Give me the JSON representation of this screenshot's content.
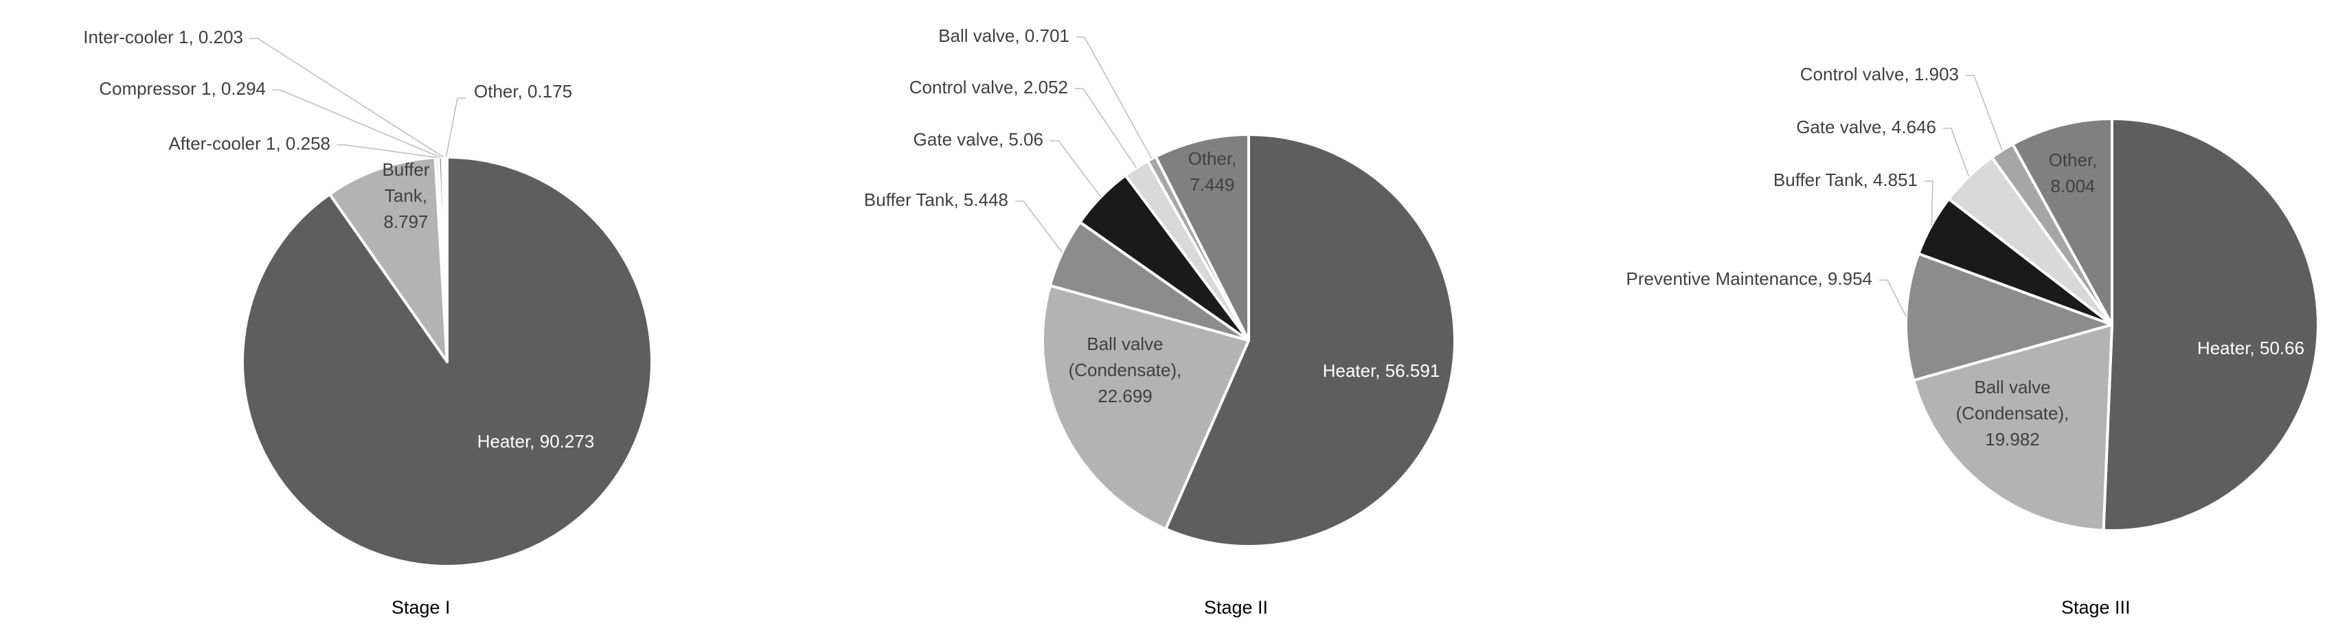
{
  "chart_data": [
    {
      "type": "pie",
      "title": "Stage I",
      "slices": [
        {
          "name": "Heater",
          "value": 90.273,
          "color": "#5e5e5e",
          "label_lines": [
            "Heater, 90.273"
          ],
          "label_color": "#ffffff"
        },
        {
          "name": "Buffer Tank",
          "value": 8.797,
          "color": "#b3b3b3",
          "label_lines": [
            "Buffer",
            "Tank,",
            "8.797"
          ],
          "label_color": "#404040"
        },
        {
          "name": "After-cooler 1",
          "value": 0.258,
          "color": "#d9d9d9",
          "label_lines": [
            "After-cooler 1, 0.258"
          ],
          "label_color": "#404040"
        },
        {
          "name": "Compressor 1",
          "value": 0.294,
          "color": "#8c8c8c",
          "label_lines": [
            "Compressor 1, 0.294"
          ],
          "label_color": "#404040"
        },
        {
          "name": "Inter-cooler 1",
          "value": 0.203,
          "color": "#1a1a1a",
          "label_lines": [
            "Inter-cooler 1, 0.203"
          ],
          "label_color": "#404040"
        },
        {
          "name": "Other",
          "value": 0.175,
          "color": "#cccccc",
          "label_lines": [
            "Other, 0.175"
          ],
          "label_color": "#404040"
        }
      ]
    },
    {
      "type": "pie",
      "title": "Stage II",
      "slices": [
        {
          "name": "Heater",
          "value": 56.591,
          "color": "#5e5e5e",
          "label_lines": [
            "Heater, 56.591"
          ],
          "label_color": "#ffffff"
        },
        {
          "name": "Ball valve (Condensate)",
          "value": 22.699,
          "color": "#b3b3b3",
          "label_lines": [
            "Ball valve",
            "(Condensate),",
            "22.699"
          ],
          "label_color": "#404040"
        },
        {
          "name": "Buffer Tank",
          "value": 5.448,
          "color": "#8c8c8c",
          "label_lines": [
            "Buffer Tank, 5.448"
          ],
          "label_color": "#404040"
        },
        {
          "name": "Gate valve",
          "value": 5.06,
          "color": "#1a1a1a",
          "label_lines": [
            "Gate valve, 5.06"
          ],
          "label_color": "#404040"
        },
        {
          "name": "Control valve",
          "value": 2.052,
          "color": "#d9d9d9",
          "label_lines": [
            "Control valve, 2.052"
          ],
          "label_color": "#404040"
        },
        {
          "name": "Ball valve",
          "value": 0.701,
          "color": "#a6a6a6",
          "label_lines": [
            "Ball valve, 0.701"
          ],
          "label_color": "#404040"
        },
        {
          "name": "Other",
          "value": 7.449,
          "color": "#808080",
          "label_lines": [
            "Other,",
            "7.449"
          ],
          "label_color": "#404040"
        }
      ]
    },
    {
      "type": "pie",
      "title": "Stage III",
      "slices": [
        {
          "name": "Heater",
          "value": 50.66,
          "color": "#5e5e5e",
          "label_lines": [
            "Heater, 50.66"
          ],
          "label_color": "#ffffff"
        },
        {
          "name": "Ball valve (Condensate)",
          "value": 19.982,
          "color": "#b3b3b3",
          "label_lines": [
            "Ball valve",
            "(Condensate),",
            "19.982"
          ],
          "label_color": "#404040"
        },
        {
          "name": "Preventive Maintenance",
          "value": 9.954,
          "color": "#8c8c8c",
          "label_lines": [
            "Preventive Maintenance, 9.954"
          ],
          "label_color": "#404040"
        },
        {
          "name": "Buffer Tank",
          "value": 4.851,
          "color": "#1a1a1a",
          "label_lines": [
            "Buffer Tank, 4.851"
          ],
          "label_color": "#404040"
        },
        {
          "name": "Gate valve",
          "value": 4.646,
          "color": "#d9d9d9",
          "label_lines": [
            "Gate valve, 4.646"
          ],
          "label_color": "#404040"
        },
        {
          "name": "Control valve",
          "value": 1.903,
          "color": "#a6a6a6",
          "label_lines": [
            "Control valve, 1.903"
          ],
          "label_color": "#404040"
        },
        {
          "name": "Other",
          "value": 8.004,
          "color": "#808080",
          "label_lines": [
            "Other,",
            "8.004"
          ],
          "label_color": "#404040"
        }
      ]
    }
  ]
}
